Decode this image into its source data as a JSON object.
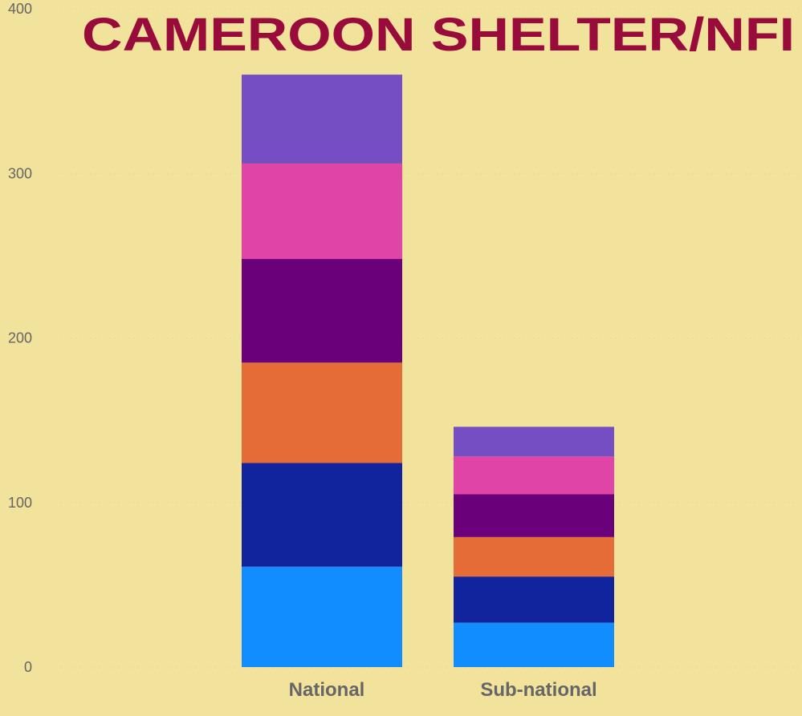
{
  "chart_data": {
    "type": "bar",
    "stacked": true,
    "title": "CAMEROON SHELTER/NFI",
    "categories": [
      "National",
      "Sub-national"
    ],
    "ylim": [
      0,
      400
    ],
    "yticks": [
      0,
      100,
      200,
      300,
      400
    ],
    "grid": true,
    "series": [
      {
        "color": "#118dff",
        "values": [
          61,
          27
        ]
      },
      {
        "color": "#12239e",
        "values": [
          63,
          28
        ]
      },
      {
        "color": "#e66c37",
        "values": [
          61,
          24
        ]
      },
      {
        "color": "#6b007b",
        "values": [
          63,
          26
        ]
      },
      {
        "color": "#e044a7",
        "values": [
          58,
          23
        ]
      },
      {
        "color": "#744ec2",
        "values": [
          54,
          18
        ]
      }
    ]
  },
  "colors": {
    "background": "#f1e29c",
    "title": "#990b3b",
    "axis_text": "#666666",
    "grid": "#d8cfa0"
  }
}
